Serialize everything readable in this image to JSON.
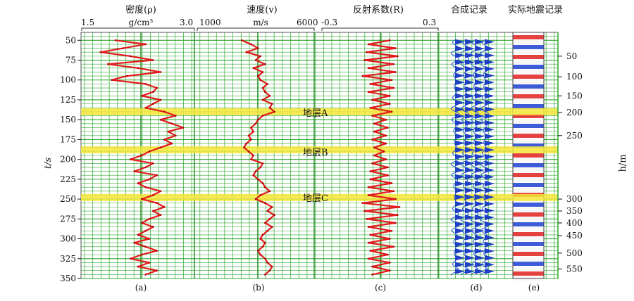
{
  "header": {
    "density": {
      "title": "密度(ρ)",
      "min": "1.5",
      "unit": "g/cm³",
      "max": "3.0"
    },
    "velocity": {
      "title": "速度(v)",
      "min": "1000",
      "unit": "m/s",
      "max": "6000"
    },
    "reflect": {
      "title": "反射系数(R)",
      "min": "-0.3",
      "max": "0.3"
    },
    "synthetic": {
      "title": "合成记录"
    },
    "seismic": {
      "title": "实际地震记录"
    }
  },
  "panel_labels": [
    "(a)",
    "(b)",
    "(c)",
    "(d)",
    "(e)"
  ],
  "axes": {
    "left_label": "t/s",
    "right_label": "h/m",
    "t_ticks": [
      "50",
      "75",
      "100",
      "125",
      "150",
      "175",
      "200",
      "225",
      "250",
      "275",
      "300",
      "325",
      "350"
    ],
    "h_ticks": [
      "50",
      "100",
      "150",
      "200",
      "250",
      "300",
      "350",
      "400",
      "450",
      "500",
      "550"
    ]
  },
  "layers": [
    {
      "label": "地层A",
      "t": 140
    },
    {
      "label": "地层B",
      "t": 188
    },
    {
      "label": "地层C",
      "t": 248
    }
  ],
  "chart_data": {
    "type": "line",
    "title": "",
    "ylabel": "t/s",
    "ylim": [
      40,
      350
    ],
    "y_reversed": true,
    "secondary_ylabel": "h/m",
    "secondary_ticks": [
      {
        "h": 50,
        "t": 70
      },
      {
        "h": 100,
        "t": 96
      },
      {
        "h": 150,
        "t": 120
      },
      {
        "h": 200,
        "t": 141
      },
      {
        "h": 250,
        "t": 170
      },
      {
        "h": 300,
        "t": 250
      },
      {
        "h": 350,
        "t": 265
      },
      {
        "h": 400,
        "t": 280
      },
      {
        "h": 450,
        "t": 296
      },
      {
        "h": 500,
        "t": 318
      },
      {
        "h": 550,
        "t": 338
      }
    ],
    "grid": true,
    "series": [
      {
        "name": "密度(ρ)",
        "unit": "g/cm³",
        "xlim": [
          1.5,
          3.0
        ],
        "color": "#e41a1c",
        "t": [
          50,
          55,
          60,
          65,
          70,
          75,
          80,
          85,
          90,
          95,
          100,
          105,
          110,
          115,
          120,
          125,
          130,
          135,
          140,
          145,
          150,
          155,
          160,
          165,
          170,
          175,
          180,
          185,
          190,
          195,
          200,
          205,
          210,
          215,
          220,
          225,
          230,
          235,
          240,
          245,
          250,
          255,
          260,
          265,
          270,
          275,
          280,
          285,
          290,
          295,
          300,
          305,
          310,
          315,
          320,
          325,
          330,
          335,
          340,
          345
        ],
        "values": [
          1.95,
          2.35,
          2.05,
          1.75,
          2.15,
          2.45,
          1.85,
          2.25,
          2.55,
          2.1,
          1.9,
          2.35,
          2.5,
          2.45,
          2.3,
          2.55,
          2.45,
          2.35,
          2.6,
          2.75,
          2.55,
          2.7,
          2.85,
          2.65,
          2.75,
          2.6,
          2.7,
          2.55,
          2.4,
          2.3,
          2.15,
          2.45,
          2.35,
          2.2,
          2.5,
          2.4,
          2.25,
          2.35,
          2.55,
          2.45,
          2.3,
          2.5,
          2.6,
          2.45,
          2.55,
          2.4,
          2.3,
          2.45,
          2.35,
          2.25,
          2.4,
          2.2,
          2.35,
          2.5,
          2.3,
          2.15,
          2.4,
          2.25,
          2.5,
          2.35
        ]
      },
      {
        "name": "速度(v)",
        "unit": "m/s",
        "xlim": [
          1000,
          6000
        ],
        "color": "#e41a1c",
        "t": [
          50,
          55,
          60,
          65,
          70,
          75,
          80,
          85,
          90,
          95,
          100,
          105,
          110,
          115,
          120,
          125,
          130,
          135,
          140,
          145,
          150,
          155,
          160,
          165,
          170,
          175,
          180,
          185,
          190,
          195,
          200,
          205,
          210,
          215,
          220,
          225,
          230,
          235,
          240,
          245,
          250,
          255,
          260,
          265,
          270,
          275,
          280,
          285,
          290,
          295,
          300,
          305,
          310,
          315,
          320,
          325,
          330,
          335,
          340,
          345
        ],
        "values": [
          2900,
          3300,
          3600,
          3100,
          3700,
          3500,
          3900,
          3400,
          3800,
          3600,
          3700,
          4000,
          3800,
          3900,
          4100,
          3800,
          4200,
          4100,
          4300,
          3800,
          3600,
          3500,
          3300,
          3400,
          3200,
          3300,
          3100,
          3000,
          3200,
          3400,
          3300,
          3800,
          3700,
          3500,
          3400,
          3600,
          3800,
          3900,
          4100,
          3700,
          3500,
          3900,
          4200,
          4000,
          4300,
          4100,
          3900,
          4200,
          4000,
          3800,
          3700,
          3900,
          3800,
          3600,
          3700,
          3900,
          4000,
          4200,
          4100,
          3900
        ]
      },
      {
        "name": "反射系数(R)",
        "xlim": [
          -0.3,
          0.3
        ],
        "color": "#e41a1c",
        "t": [
          50,
          55,
          60,
          65,
          70,
          75,
          80,
          85,
          90,
          95,
          100,
          105,
          110,
          115,
          120,
          125,
          130,
          135,
          140,
          145,
          150,
          155,
          160,
          165,
          170,
          175,
          180,
          185,
          190,
          195,
          200,
          205,
          210,
          215,
          220,
          225,
          230,
          235,
          240,
          245,
          250,
          255,
          260,
          265,
          270,
          275,
          280,
          285,
          290,
          295,
          300,
          305,
          310,
          315,
          320,
          325,
          330,
          335,
          340,
          345
        ],
        "values": [
          0.05,
          -0.06,
          0.08,
          -0.07,
          0.09,
          -0.08,
          0.07,
          -0.06,
          0.08,
          -0.09,
          0.06,
          -0.05,
          0.07,
          -0.06,
          0.05,
          -0.04,
          0.05,
          -0.05,
          0.06,
          -0.04,
          0.03,
          -0.03,
          0.04,
          -0.03,
          0.03,
          -0.04,
          0.03,
          -0.03,
          0.02,
          -0.03,
          0.03,
          -0.04,
          0.04,
          -0.05,
          0.04,
          -0.05,
          0.06,
          -0.06,
          0.07,
          -0.06,
          0.08,
          -0.09,
          0.1,
          -0.08,
          0.09,
          -0.07,
          0.08,
          -0.06,
          0.06,
          -0.05,
          0.05,
          -0.06,
          0.07,
          -0.05,
          0.04,
          -0.06,
          0.05,
          -0.04,
          0.05,
          -0.04
        ]
      }
    ]
  }
}
